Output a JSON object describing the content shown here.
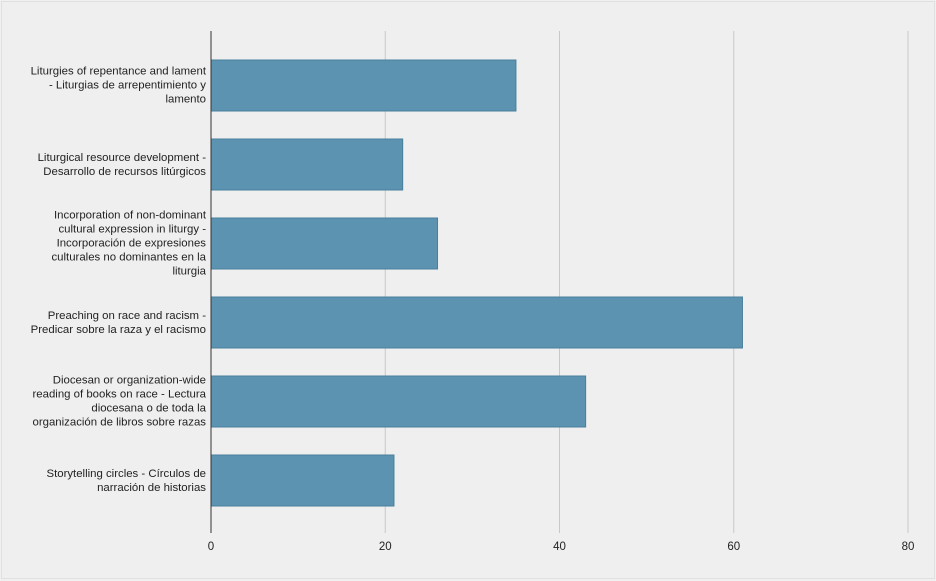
{
  "chart_data": {
    "type": "bar",
    "orientation": "horizontal",
    "categories": [
      "Liturgies of repentance and lament - Liturgias de arrepentimiento y lamento",
      "Liturgical resource development - Desarrollo de recursos litúrgicos",
      "Incorporation of non-dominant cultural expression in liturgy - Incorporación de expresiones culturales no dominantes en la liturgia",
      "Preaching on race and racism - Predicar sobre la raza y el racismo",
      "Diocesan or organization-wide reading of books on race - Lectura diocesana o de toda la organización de libros sobre razas",
      "Storytelling circles - Círculos de narración de historias"
    ],
    "values": [
      35,
      22,
      26,
      61,
      43,
      21
    ],
    "xlim": [
      0,
      80
    ],
    "xticks": [
      "0",
      "20",
      "40",
      "60",
      "80"
    ],
    "title": "",
    "xlabel": "",
    "ylabel": "",
    "grid": "vertical",
    "legend": "none",
    "colors": {
      "bar": "#5b93b0",
      "bar_edge": "#4a7f9b",
      "grid": "#c8c8c8",
      "axis": "#333333",
      "background": "#efefef"
    }
  }
}
